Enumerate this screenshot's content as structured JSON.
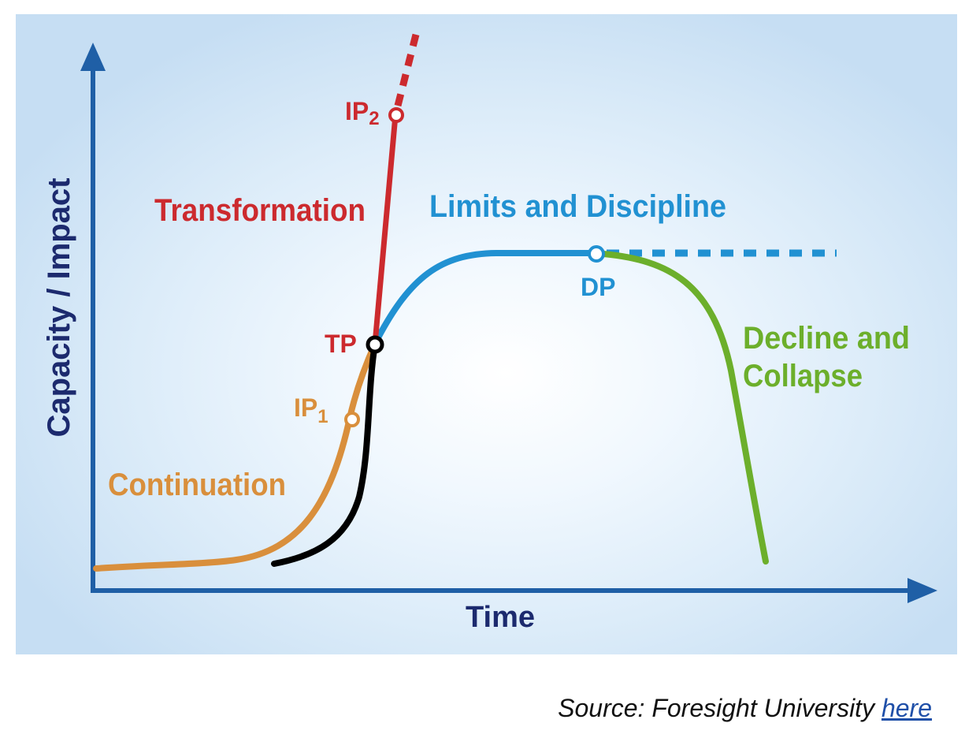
{
  "diagram": {
    "axes": {
      "y_label": "Capacity / Impact",
      "x_label": "Time"
    },
    "curves": {
      "continuation": "Continuation",
      "transformation": "Transformation",
      "limits": "Limits and Discipline",
      "decline_line1": "Decline and",
      "decline_line2": "Collapse"
    },
    "points": {
      "ip1": {
        "base": "IP",
        "sub": "1"
      },
      "ip2": {
        "base": "IP",
        "sub": "2"
      },
      "tp": "TP",
      "dp": "DP"
    },
    "colors": {
      "axis": "#1f5fa6",
      "axis_text": "#1c2a6e",
      "continuation": "#d98f3c",
      "transformation": "#cc2a2e",
      "limits": "#2191d2",
      "decline": "#6caf2b",
      "tp_curve": "#000000"
    }
  },
  "source": {
    "prefix": "Source: Foresight University ",
    "link": "here"
  }
}
